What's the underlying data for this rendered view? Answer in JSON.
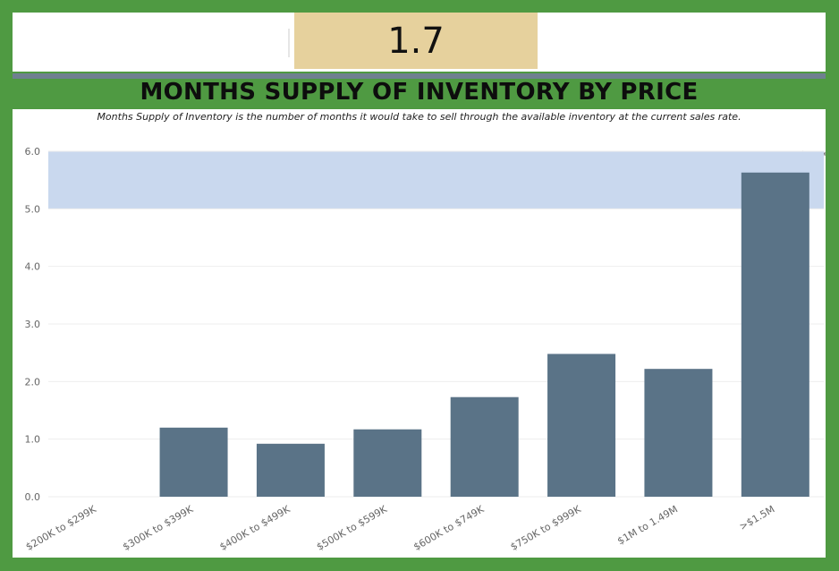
{
  "kpi": {
    "value": "1.7"
  },
  "header": {
    "title": "MONTHS SUPPLY OF INVENTORY BY PRICE",
    "subtitle": "Months Supply of Inventory is the number of months it would take to sell through the available inventory at the current sales rate."
  },
  "toolbar": {
    "icons": [
      "download-icon",
      "copy-icon",
      "export-icon"
    ]
  },
  "colors": {
    "background": "#4f9a42",
    "kpi_box": "#e6d19d",
    "bar": "#5a7387",
    "band": "#c9d8ee",
    "grid": "#eeeeee"
  },
  "chart_data": {
    "type": "bar",
    "title": "MONTHS SUPPLY OF INVENTORY BY PRICE",
    "xlabel": "",
    "ylabel": "",
    "categories": [
      "$200K to $299K",
      "$300K to $399K",
      "$400K to $499K",
      "$500K to $599K",
      "$600K to $749K",
      "$750K to $999K",
      "$1M to 1.49M",
      ">$1.5M"
    ],
    "values": [
      0,
      1.2,
      0.92,
      1.17,
      1.73,
      2.48,
      2.22,
      5.63
    ],
    "ylim": [
      0,
      6
    ],
    "yticks": [
      "0.0",
      "1.0",
      "2.0",
      "3.0",
      "4.0",
      "5.0",
      "6.0"
    ],
    "band": [
      5,
      6
    ],
    "grid": true
  }
}
